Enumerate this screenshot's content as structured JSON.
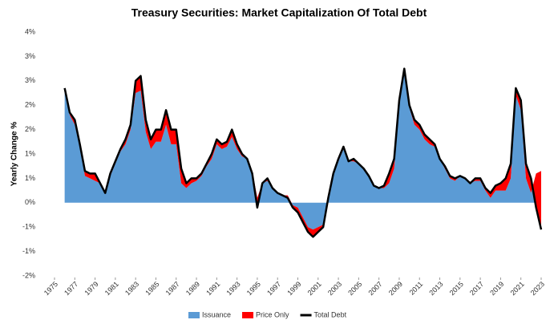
{
  "chart_data": {
    "type": "area",
    "title": "Treasury Securities: Market Capitalization Of Total Debt",
    "y_label": "Yearly Change %",
    "x": [
      1976,
      1976.5,
      1977,
      1977.5,
      1978,
      1978.5,
      1979,
      1979.5,
      1980,
      1980.5,
      1981,
      1981.5,
      1982,
      1982.5,
      1983,
      1983.5,
      1984,
      1984.5,
      1985,
      1985.5,
      1986,
      1986.5,
      1987,
      1987.5,
      1988,
      1988.5,
      1989,
      1989.5,
      1990,
      1990.5,
      1991,
      1991.5,
      1992,
      1992.5,
      1993,
      1993.5,
      1994,
      1994.5,
      1995,
      1995.5,
      1996,
      1996.5,
      1997,
      1997.5,
      1998,
      1998.5,
      1999,
      1999.5,
      2000,
      2000.5,
      2001,
      2001.5,
      2002,
      2002.5,
      2003,
      2003.5,
      2004,
      2004.5,
      2005,
      2005.5,
      2006,
      2006.5,
      2007,
      2007.5,
      2008,
      2008.5,
      2009,
      2009.5,
      2010,
      2010.5,
      2011,
      2011.5,
      2012,
      2012.5,
      2013,
      2013.5,
      2014,
      2014.5,
      2015,
      2015.5,
      2016,
      2016.5,
      2017,
      2017.5,
      2018,
      2018.5,
      2019,
      2019.5,
      2020,
      2020.5,
      2021,
      2021.5,
      2022,
      2022.5,
      2023
    ],
    "series": [
      {
        "name": "Issuance",
        "color": "#5b9bd5",
        "kind": "area",
        "values": [
          2.3,
          1.8,
          1.6,
          1.15,
          0.55,
          0.5,
          0.45,
          0.4,
          0.2,
          0.55,
          0.8,
          1.05,
          1.2,
          1.5,
          2.25,
          2.3,
          1.45,
          1.1,
          1.25,
          1.25,
          1.6,
          1.2,
          1.2,
          0.4,
          0.3,
          0.4,
          0.45,
          0.55,
          0.75,
          0.9,
          1.2,
          1.1,
          1.15,
          1.35,
          1.1,
          0.95,
          0.9,
          0.65,
          0.1,
          0.4,
          0.45,
          0.3,
          0.2,
          0.15,
          0.15,
          -0.05,
          -0.1,
          -0.3,
          -0.5,
          -0.55,
          -0.5,
          -0.45,
          0.05,
          0.55,
          0.85,
          1.1,
          0.85,
          0.85,
          0.8,
          0.7,
          0.55,
          0.35,
          0.3,
          0.3,
          0.4,
          0.7,
          2.0,
          2.65,
          1.95,
          1.6,
          1.5,
          1.3,
          1.2,
          1.15,
          0.9,
          0.7,
          0.5,
          0.45,
          0.55,
          0.5,
          0.4,
          0.45,
          0.45,
          0.25,
          0.1,
          0.25,
          0.25,
          0.25,
          0.5,
          2.2,
          1.9,
          0.5,
          0.2,
          0.6,
          0.65
        ]
      },
      {
        "name": "Price Only",
        "color": "#ff0000",
        "kind": "stacked",
        "values": [
          0.05,
          0.05,
          0.1,
          0.05,
          0.1,
          0.1,
          0.15,
          0,
          0,
          0.05,
          0.05,
          0.05,
          0.1,
          0.1,
          0.25,
          0.3,
          0.25,
          0.2,
          0.25,
          0.25,
          0.3,
          0.3,
          0.3,
          0.3,
          0.1,
          0.1,
          0.05,
          0.05,
          0.05,
          0.1,
          0.1,
          0.1,
          0.1,
          0.15,
          0.1,
          0.05,
          0,
          -0.05,
          -0.2,
          0,
          0.05,
          0,
          0,
          0,
          -0.05,
          -0.05,
          -0.1,
          -0.1,
          -0.1,
          -0.15,
          -0.1,
          -0.05,
          0.05,
          0.05,
          0.05,
          0.05,
          0,
          0.05,
          0,
          0,
          0,
          0,
          0,
          0.05,
          0.2,
          0.2,
          0.1,
          0.1,
          0.05,
          0.1,
          0.1,
          0.1,
          0.1,
          0.05,
          0,
          0.05,
          0.05,
          0.05,
          0,
          0,
          0,
          0.05,
          0.05,
          0.05,
          0.1,
          0.1,
          0.15,
          0.25,
          0.3,
          0.15,
          0.2,
          0.3,
          0.3,
          -0.7,
          -1.2
        ]
      },
      {
        "name": "Total Debt",
        "color": "#000000",
        "kind": "line",
        "values": [
          2.35,
          1.85,
          1.7,
          1.2,
          0.65,
          0.6,
          0.6,
          0.4,
          0.2,
          0.6,
          0.85,
          1.1,
          1.3,
          1.6,
          2.5,
          2.6,
          1.7,
          1.3,
          1.5,
          1.5,
          1.9,
          1.5,
          1.5,
          0.7,
          0.4,
          0.5,
          0.5,
          0.6,
          0.8,
          1.0,
          1.3,
          1.2,
          1.25,
          1.5,
          1.2,
          1.0,
          0.9,
          0.6,
          -0.1,
          0.4,
          0.5,
          0.3,
          0.2,
          0.15,
          0.1,
          -0.1,
          -0.2,
          -0.4,
          -0.6,
          -0.7,
          -0.6,
          -0.5,
          0.1,
          0.6,
          0.9,
          1.15,
          0.85,
          0.9,
          0.8,
          0.7,
          0.55,
          0.35,
          0.3,
          0.35,
          0.6,
          0.9,
          2.1,
          2.75,
          2.0,
          1.7,
          1.6,
          1.4,
          1.3,
          1.2,
          0.9,
          0.75,
          0.55,
          0.5,
          0.55,
          0.5,
          0.4,
          0.5,
          0.5,
          0.3,
          0.2,
          0.35,
          0.4,
          0.5,
          0.8,
          2.35,
          2.1,
          0.8,
          0.5,
          -0.1,
          -0.55
        ]
      }
    ],
    "xlim": [
      1975,
      2023
    ],
    "xticks": [
      1975,
      1977,
      1979,
      1981,
      1983,
      1985,
      1987,
      1989,
      1991,
      1993,
      1995,
      1997,
      1999,
      2001,
      2003,
      2005,
      2007,
      2009,
      2011,
      2013,
      2015,
      2017,
      2019,
      2021,
      2023
    ],
    "ylim": [
      -1.5,
      3.5
    ],
    "yticks": [
      {
        "value": -1.5,
        "label": "-2%"
      },
      {
        "value": -1.0,
        "label": "-1%"
      },
      {
        "value": -0.5,
        "label": "-1%"
      },
      {
        "value": 0,
        "label": "0%"
      },
      {
        "value": 0.5,
        "label": "1%"
      },
      {
        "value": 1.0,
        "label": "1%"
      },
      {
        "value": 1.5,
        "label": "2%"
      },
      {
        "value": 2.0,
        "label": "2%"
      },
      {
        "value": 2.5,
        "label": "3%"
      },
      {
        "value": 3.0,
        "label": "3%"
      },
      {
        "value": 3.5,
        "label": "4%"
      }
    ],
    "legend": "bottom"
  }
}
